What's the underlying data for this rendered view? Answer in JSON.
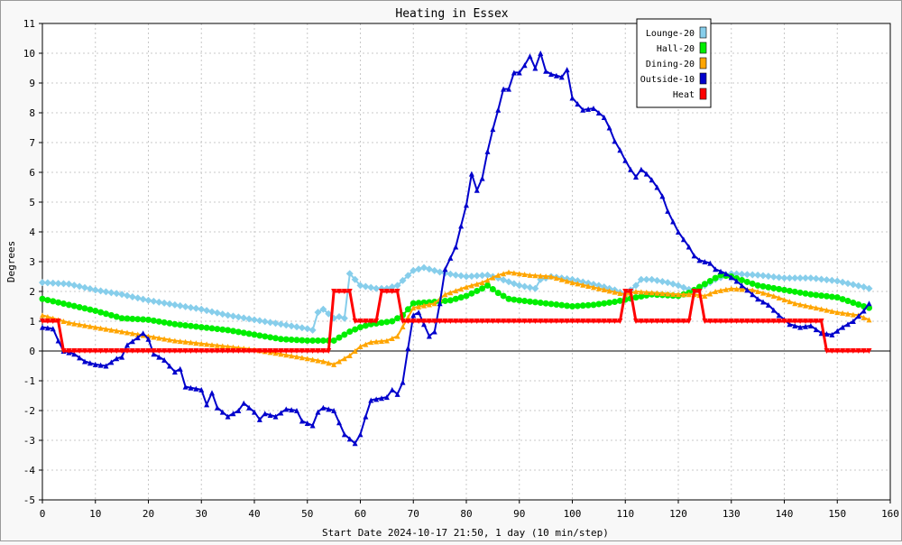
{
  "chart_data": {
    "type": "line",
    "title": "Heating in Essex",
    "xlabel": "Start Date 2024-10-17 21:50, 1 day (10 min/step)",
    "ylabel": "Degrees",
    "xlim": [
      0,
      160
    ],
    "ylim": [
      -5,
      11
    ],
    "xticks": [
      "0",
      "10",
      "20",
      "30",
      "40",
      "50",
      "60",
      "70",
      "80",
      "90",
      "100",
      "110",
      "120",
      "130",
      "140",
      "150",
      "160"
    ],
    "yticks": [
      "-5",
      "-4",
      "-3",
      "-2",
      "-1",
      "0",
      "1",
      "2",
      "3",
      "4",
      "5",
      "6",
      "7",
      "8",
      "9",
      "10",
      "11"
    ],
    "grid": true,
    "legend_position": "top-right",
    "series": [
      {
        "name": "Lounge-20",
        "color": "#87ceeb",
        "marker": "diamond",
        "points": [
          [
            0,
            2.3
          ],
          [
            5,
            2.25
          ],
          [
            10,
            2.05
          ],
          [
            15,
            1.9
          ],
          [
            20,
            1.7
          ],
          [
            25,
            1.55
          ],
          [
            30,
            1.4
          ],
          [
            35,
            1.2
          ],
          [
            40,
            1.05
          ],
          [
            45,
            0.9
          ],
          [
            50,
            0.75
          ],
          [
            51,
            0.7
          ],
          [
            52,
            1.3
          ],
          [
            53,
            1.4
          ],
          [
            54,
            1.25
          ],
          [
            55,
            1.1
          ],
          [
            56,
            1.15
          ],
          [
            57,
            1.1
          ],
          [
            58,
            2.6
          ],
          [
            59,
            2.4
          ],
          [
            60,
            2.2
          ],
          [
            63,
            2.1
          ],
          [
            65,
            2.1
          ],
          [
            67,
            2.2
          ],
          [
            70,
            2.7
          ],
          [
            72,
            2.8
          ],
          [
            75,
            2.65
          ],
          [
            78,
            2.55
          ],
          [
            80,
            2.5
          ],
          [
            84,
            2.55
          ],
          [
            86,
            2.45
          ],
          [
            90,
            2.2
          ],
          [
            93,
            2.1
          ],
          [
            94,
            2.4
          ],
          [
            96,
            2.5
          ],
          [
            100,
            2.4
          ],
          [
            105,
            2.2
          ],
          [
            108,
            2.05
          ],
          [
            110,
            1.9
          ],
          [
            112,
            2.2
          ],
          [
            113,
            2.4
          ],
          [
            115,
            2.4
          ],
          [
            118,
            2.3
          ],
          [
            120,
            2.2
          ],
          [
            123,
            2.0
          ],
          [
            125,
            2.2
          ],
          [
            127,
            2.4
          ],
          [
            130,
            2.6
          ],
          [
            135,
            2.55
          ],
          [
            140,
            2.45
          ],
          [
            145,
            2.45
          ],
          [
            150,
            2.35
          ],
          [
            155,
            2.15
          ],
          [
            156,
            2.1
          ]
        ]
      },
      {
        "name": "Hall-20",
        "color": "#00ee00",
        "marker": "circle",
        "points": [
          [
            0,
            1.75
          ],
          [
            5,
            1.55
          ],
          [
            10,
            1.35
          ],
          [
            15,
            1.1
          ],
          [
            20,
            1.05
          ],
          [
            25,
            0.9
          ],
          [
            30,
            0.8
          ],
          [
            35,
            0.7
          ],
          [
            40,
            0.55
          ],
          [
            45,
            0.4
          ],
          [
            50,
            0.35
          ],
          [
            55,
            0.35
          ],
          [
            58,
            0.65
          ],
          [
            60,
            0.8
          ],
          [
            62,
            0.9
          ],
          [
            64,
            0.95
          ],
          [
            66,
            1.0
          ],
          [
            68,
            1.2
          ],
          [
            70,
            1.6
          ],
          [
            74,
            1.65
          ],
          [
            77,
            1.7
          ],
          [
            80,
            1.85
          ],
          [
            83,
            2.1
          ],
          [
            84,
            2.2
          ],
          [
            86,
            1.95
          ],
          [
            88,
            1.75
          ],
          [
            90,
            1.7
          ],
          [
            95,
            1.6
          ],
          [
            100,
            1.5
          ],
          [
            104,
            1.55
          ],
          [
            108,
            1.65
          ],
          [
            112,
            1.8
          ],
          [
            115,
            1.9
          ],
          [
            120,
            1.85
          ],
          [
            122,
            1.95
          ],
          [
            125,
            2.25
          ],
          [
            128,
            2.55
          ],
          [
            130,
            2.5
          ],
          [
            135,
            2.2
          ],
          [
            140,
            2.05
          ],
          [
            145,
            1.9
          ],
          [
            150,
            1.8
          ],
          [
            155,
            1.5
          ],
          [
            156,
            1.45
          ]
        ]
      },
      {
        "name": "Dining-20",
        "color": "#ffa500",
        "marker": "triangle",
        "points": [
          [
            0,
            1.2
          ],
          [
            5,
            0.95
          ],
          [
            10,
            0.8
          ],
          [
            15,
            0.65
          ],
          [
            20,
            0.5
          ],
          [
            25,
            0.35
          ],
          [
            30,
            0.25
          ],
          [
            35,
            0.15
          ],
          [
            40,
            0.05
          ],
          [
            45,
            -0.1
          ],
          [
            50,
            -0.25
          ],
          [
            53,
            -0.35
          ],
          [
            55,
            -0.45
          ],
          [
            58,
            -0.15
          ],
          [
            60,
            0.15
          ],
          [
            62,
            0.3
          ],
          [
            65,
            0.35
          ],
          [
            67,
            0.5
          ],
          [
            70,
            1.45
          ],
          [
            74,
            1.6
          ],
          [
            76,
            1.9
          ],
          [
            80,
            2.15
          ],
          [
            83,
            2.3
          ],
          [
            86,
            2.55
          ],
          [
            88,
            2.65
          ],
          [
            92,
            2.55
          ],
          [
            96,
            2.5
          ],
          [
            100,
            2.3
          ],
          [
            105,
            2.1
          ],
          [
            110,
            1.9
          ],
          [
            112,
            2.0
          ],
          [
            116,
            1.95
          ],
          [
            120,
            1.9
          ],
          [
            123,
            1.9
          ],
          [
            125,
            1.85
          ],
          [
            127,
            2.0
          ],
          [
            130,
            2.1
          ],
          [
            134,
            2.05
          ],
          [
            138,
            1.85
          ],
          [
            142,
            1.6
          ],
          [
            146,
            1.45
          ],
          [
            150,
            1.3
          ],
          [
            154,
            1.2
          ],
          [
            156,
            1.05
          ]
        ]
      },
      {
        "name": "Outside-10",
        "color": "#0000cc",
        "marker": "triangle",
        "points": [
          [
            0,
            0.8
          ],
          [
            2,
            0.75
          ],
          [
            3,
            0.35
          ],
          [
            4,
            0
          ],
          [
            6,
            -0.1
          ],
          [
            8,
            -0.35
          ],
          [
            10,
            -0.45
          ],
          [
            12,
            -0.5
          ],
          [
            14,
            -0.25
          ],
          [
            15,
            -0.2
          ],
          [
            16,
            0.2
          ],
          [
            18,
            0.45
          ],
          [
            19,
            0.6
          ],
          [
            20,
            0.4
          ],
          [
            21,
            -0.1
          ],
          [
            23,
            -0.3
          ],
          [
            25,
            -0.7
          ],
          [
            26,
            -0.6
          ],
          [
            27,
            -1.2
          ],
          [
            30,
            -1.3
          ],
          [
            31,
            -1.8
          ],
          [
            32,
            -1.4
          ],
          [
            33,
            -1.9
          ],
          [
            35,
            -2.2
          ],
          [
            37,
            -2.0
          ],
          [
            38,
            -1.75
          ],
          [
            40,
            -2.05
          ],
          [
            41,
            -2.3
          ],
          [
            42,
            -2.1
          ],
          [
            44,
            -2.2
          ],
          [
            46,
            -1.95
          ],
          [
            48,
            -2.0
          ],
          [
            49,
            -2.35
          ],
          [
            51,
            -2.5
          ],
          [
            52,
            -2.05
          ],
          [
            53,
            -1.9
          ],
          [
            55,
            -2.0
          ],
          [
            57,
            -2.8
          ],
          [
            59,
            -3.1
          ],
          [
            60,
            -2.8
          ],
          [
            61,
            -2.2
          ],
          [
            62,
            -1.65
          ],
          [
            65,
            -1.55
          ],
          [
            66,
            -1.3
          ],
          [
            67,
            -1.45
          ],
          [
            68,
            -1.05
          ],
          [
            69,
            0.1
          ],
          [
            70,
            1.2
          ],
          [
            71,
            1.3
          ],
          [
            73,
            0.5
          ],
          [
            74,
            0.65
          ],
          [
            75,
            1.6
          ],
          [
            76,
            2.75
          ],
          [
            78,
            3.5
          ],
          [
            79,
            4.2
          ],
          [
            80,
            4.9
          ],
          [
            81,
            5.95
          ],
          [
            82,
            5.4
          ],
          [
            83,
            5.8
          ],
          [
            84,
            6.7
          ],
          [
            85,
            7.45
          ],
          [
            86,
            8.1
          ],
          [
            87,
            8.8
          ],
          [
            88,
            8.8
          ],
          [
            89,
            9.35
          ],
          [
            90,
            9.35
          ],
          [
            91,
            9.6
          ],
          [
            92,
            9.9
          ],
          [
            93,
            9.5
          ],
          [
            94,
            10.0
          ],
          [
            95,
            9.4
          ],
          [
            96,
            9.3
          ],
          [
            98,
            9.2
          ],
          [
            99,
            9.45
          ],
          [
            100,
            8.5
          ],
          [
            101,
            8.3
          ],
          [
            102,
            8.1
          ],
          [
            104,
            8.15
          ],
          [
            106,
            7.85
          ],
          [
            107,
            7.5
          ],
          [
            108,
            7.05
          ],
          [
            109,
            6.75
          ],
          [
            110,
            6.4
          ],
          [
            111,
            6.1
          ],
          [
            112,
            5.85
          ],
          [
            113,
            6.1
          ],
          [
            114,
            5.95
          ],
          [
            115,
            5.75
          ],
          [
            116,
            5.5
          ],
          [
            117,
            5.2
          ],
          [
            118,
            4.7
          ],
          [
            119,
            4.35
          ],
          [
            120,
            4.0
          ],
          [
            121,
            3.75
          ],
          [
            122,
            3.5
          ],
          [
            123,
            3.2
          ],
          [
            124,
            3.05
          ],
          [
            126,
            2.95
          ],
          [
            127,
            2.75
          ],
          [
            129,
            2.6
          ],
          [
            131,
            2.35
          ],
          [
            133,
            2.05
          ],
          [
            135,
            1.75
          ],
          [
            137,
            1.55
          ],
          [
            139,
            1.2
          ],
          [
            141,
            0.9
          ],
          [
            143,
            0.8
          ],
          [
            145,
            0.85
          ],
          [
            147,
            0.6
          ],
          [
            149,
            0.55
          ],
          [
            151,
            0.8
          ],
          [
            153,
            1.0
          ],
          [
            155,
            1.35
          ],
          [
            156,
            1.6
          ]
        ]
      },
      {
        "name": "Heat",
        "color": "#ff0000",
        "marker": "triangle-down",
        "points": [
          [
            0,
            1
          ],
          [
            3,
            1
          ],
          [
            4,
            0
          ],
          [
            54,
            0
          ],
          [
            55,
            2
          ],
          [
            58,
            2
          ],
          [
            59,
            1
          ],
          [
            63,
            1
          ],
          [
            64,
            2
          ],
          [
            67,
            2
          ],
          [
            68,
            1
          ],
          [
            109,
            1
          ],
          [
            110,
            2
          ],
          [
            111,
            2
          ],
          [
            112,
            1
          ],
          [
            122,
            1
          ],
          [
            123,
            2
          ],
          [
            124,
            2
          ],
          [
            125,
            1
          ],
          [
            147,
            1
          ],
          [
            148,
            0
          ],
          [
            156,
            0
          ]
        ]
      }
    ]
  }
}
